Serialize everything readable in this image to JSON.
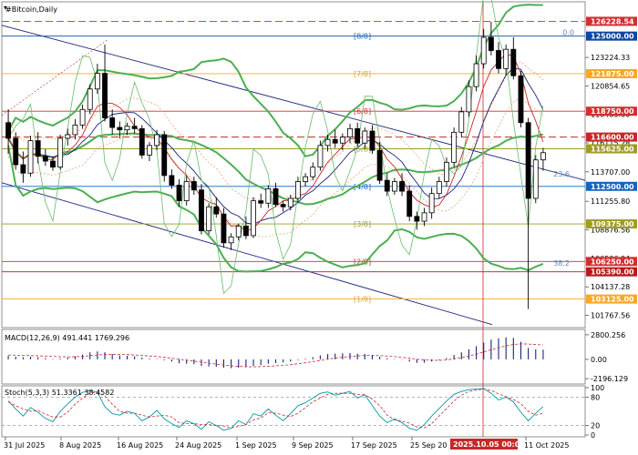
{
  "title": "#Bitcoin,Daily",
  "x_labels": [
    "31 Jul 2025",
    "8 Aug 2025",
    "16 Aug 2025",
    "24 Aug 2025",
    "1 Sep 2025",
    "9 Sep 2025",
    "17 Sep 2025",
    "25 Sep 20",
    "2025.10.05 00:00",
    "11 Oct 2025"
  ],
  "y_labels": [
    "123224.33",
    "120854.65",
    "118485.00",
    "116115.28",
    "113707.00",
    "111255.80",
    "108876.56",
    "106506.94",
    "104137.28",
    "101767.56"
  ],
  "price_tags": [
    {
      "label": "126228.54",
      "color": "#d32f2f",
      "y": 126228.54
    },
    {
      "label": "125000.00",
      "color": "#0d47a1",
      "y": 125000.0
    },
    {
      "label": "121875.00",
      "color": "#f9a825",
      "y": 121875.0
    },
    {
      "label": "118750.00",
      "color": "#d32f2f",
      "y": 118750.0
    },
    {
      "label": "116600.00",
      "color": "#c62828",
      "y": 116600.0
    },
    {
      "label": "115625.00",
      "color": "#9e9d24",
      "y": 115625.0
    },
    {
      "label": "112500.00",
      "color": "#1565c0",
      "y": 112500.0
    },
    {
      "label": "109375.00",
      "color": "#9e9d24",
      "y": 109375.0
    },
    {
      "label": "106250.00",
      "color": "#d32f2f",
      "y": 106250.0
    },
    {
      "label": "105390.00",
      "color": "#b71c1c",
      "y": 105390.0
    },
    {
      "label": "103125.00",
      "color": "#f9a825",
      "y": 103125.0
    }
  ],
  "murrey_labels": [
    {
      "label": "[8/8]",
      "color": "#1565c0",
      "y": 125000
    },
    {
      "label": "[7/8]",
      "color": "#e0a030",
      "y": 121875
    },
    {
      "label": "[6/8]",
      "color": "#d32f2f",
      "y": 118750
    },
    {
      "label": "[5/8]",
      "color": "#9e9d24",
      "y": 115625
    },
    {
      "label": "[4/8]",
      "color": "#1565c0",
      "y": 112500
    },
    {
      "label": "[3/8]",
      "color": "#9e9d24",
      "y": 109375
    },
    {
      "label": "[2/8]",
      "color": "#d32f2f",
      "y": 106250
    },
    {
      "label": "[1/8]",
      "color": "#e0a030",
      "y": 103125
    }
  ],
  "fib_labels": [
    "0.0",
    "23.6",
    "38.2"
  ],
  "macd": {
    "label": "MACD(12,26,9) 491.441 1769.296",
    "ticks": [
      "2800.256",
      "0.00",
      "-2196.129"
    ]
  },
  "stoch": {
    "label": "Stoch(5,3,3) 51.3361 38.4582",
    "ticks": [
      "100",
      "80",
      "20",
      "0"
    ]
  },
  "chart_data": {
    "type": "candlestick",
    "ylim": [
      100900,
      127700
    ],
    "candles": [
      [
        117800,
        118900,
        115200,
        116500
      ],
      [
        116500,
        117000,
        113900,
        114300
      ],
      [
        114300,
        115400,
        112800,
        113600
      ],
      [
        113600,
        116700,
        113300,
        116300
      ],
      [
        116300,
        117000,
        114400,
        115000
      ],
      [
        115000,
        115600,
        114200,
        114600
      ],
      [
        114600,
        115000,
        113800,
        114100
      ],
      [
        114100,
        116800,
        113900,
        116500
      ],
      [
        116500,
        117300,
        115900,
        116800
      ],
      [
        116800,
        118100,
        116400,
        117600
      ],
      [
        117600,
        119300,
        117300,
        118900
      ],
      [
        118900,
        121000,
        118500,
        120600
      ],
      [
        120600,
        122700,
        120200,
        121900
      ],
      [
        121900,
        124300,
        117900,
        118200
      ],
      [
        118200,
        118900,
        116800,
        117400
      ],
      [
        117400,
        117900,
        116500,
        117200
      ],
      [
        117200,
        117800,
        116800,
        117500
      ],
      [
        117500,
        118200,
        116900,
        117300
      ],
      [
        117300,
        117600,
        114800,
        115100
      ],
      [
        115100,
        116200,
        114600,
        115900
      ],
      [
        115900,
        117200,
        115500,
        116800
      ],
      [
        116800,
        117100,
        112900,
        113400
      ],
      [
        113400,
        113900,
        112300,
        112600
      ],
      [
        112600,
        113100,
        110800,
        111300
      ],
      [
        111300,
        113400,
        110900,
        112900
      ],
      [
        112900,
        113300,
        111800,
        112200
      ],
      [
        112200,
        112700,
        108500,
        108800
      ],
      [
        108800,
        111100,
        108500,
        110800
      ],
      [
        110800,
        111600,
        109900,
        110200
      ],
      [
        110200,
        110700,
        107400,
        107800
      ],
      [
        107800,
        108600,
        107200,
        108300
      ],
      [
        108300,
        109400,
        108000,
        109200
      ],
      [
        109200,
        110000,
        108100,
        108400
      ],
      [
        108400,
        111600,
        108200,
        111300
      ],
      [
        111300,
        111900,
        110700,
        111100
      ],
      [
        111100,
        112600,
        110700,
        112300
      ],
      [
        112300,
        112800,
        110800,
        111000
      ],
      [
        111000,
        111300,
        110400,
        110800
      ],
      [
        110800,
        111800,
        110500,
        111500
      ],
      [
        111500,
        113300,
        111200,
        112900
      ],
      [
        112900,
        113600,
        112500,
        113300
      ],
      [
        113300,
        114500,
        113000,
        114100
      ],
      [
        114100,
        116300,
        113800,
        115900
      ],
      [
        115900,
        116800,
        115400,
        116400
      ],
      [
        116400,
        117200,
        115700,
        116100
      ],
      [
        116100,
        116900,
        115500,
        116600
      ],
      [
        116600,
        117700,
        116100,
        117300
      ],
      [
        117300,
        117800,
        115800,
        116100
      ],
      [
        116100,
        117400,
        115600,
        117100
      ],
      [
        117100,
        117600,
        115200,
        115500
      ],
      [
        115500,
        116200,
        112700,
        113000
      ],
      [
        113000,
        113600,
        111700,
        112100
      ],
      [
        112100,
        113200,
        111800,
        112900
      ],
      [
        112900,
        113600,
        111700,
        112100
      ],
      [
        112100,
        112600,
        109600,
        110000
      ],
      [
        110000,
        110400,
        108900,
        109600
      ],
      [
        109600,
        110700,
        109200,
        110300
      ],
      [
        110300,
        112400,
        109800,
        111900
      ],
      [
        111900,
        113300,
        111500,
        112900
      ],
      [
        112900,
        114900,
        112500,
        114500
      ],
      [
        114500,
        117400,
        114100,
        117000
      ],
      [
        117000,
        119100,
        116600,
        118700
      ],
      [
        118700,
        121300,
        118300,
        120800
      ],
      [
        120800,
        123400,
        120400,
        122700
      ],
      [
        122700,
        125600,
        122300,
        124900
      ],
      [
        124900,
        126200,
        123400,
        123800
      ],
      [
        123800,
        124500,
        121900,
        122300
      ],
      [
        122300,
        124300,
        121700,
        123900
      ],
      [
        123900,
        124900,
        121400,
        121700
      ],
      [
        121700,
        122100,
        117400,
        117800
      ],
      [
        117800,
        118200,
        102300,
        111500
      ],
      [
        111500,
        115100,
        111100,
        114700
      ],
      [
        114700,
        115700,
        113800,
        115300
      ]
    ],
    "stoch_k": [
      72,
      55,
      40,
      58,
      48,
      35,
      28,
      50,
      66,
      80,
      90,
      94,
      90,
      60,
      45,
      42,
      50,
      46,
      30,
      38,
      52,
      34,
      24,
      16,
      30,
      24,
      12,
      28,
      20,
      10,
      14,
      30,
      22,
      45,
      40,
      55,
      42,
      30,
      45,
      62,
      68,
      78,
      88,
      91,
      84,
      88,
      92,
      78,
      85,
      62,
      40,
      26,
      34,
      26,
      14,
      10,
      22,
      40,
      56,
      72,
      86,
      92,
      96,
      97,
      98,
      88,
      74,
      80,
      70,
      48,
      30,
      46,
      60
    ],
    "stoch_d": [
      70,
      62,
      55,
      50,
      52,
      44,
      38,
      38,
      48,
      65,
      78,
      88,
      91,
      82,
      65,
      50,
      46,
      46,
      42,
      38,
      40,
      42,
      38,
      26,
      24,
      24,
      22,
      22,
      20,
      19,
      15,
      18,
      22,
      32,
      36,
      47,
      46,
      42,
      39,
      46,
      58,
      70,
      78,
      86,
      88,
      88,
      88,
      86,
      85,
      76,
      62,
      42,
      32,
      29,
      25,
      17,
      15,
      24,
      40,
      56,
      72,
      84,
      92,
      95,
      97,
      94,
      87,
      81,
      75,
      66,
      50,
      42,
      46
    ],
    "macd_hist": [
      400,
      300,
      250,
      300,
      250,
      150,
      50,
      100,
      200,
      350,
      550,
      800,
      900,
      800,
      600,
      450,
      400,
      350,
      200,
      100,
      50,
      -100,
      -250,
      -450,
      -500,
      -550,
      -750,
      -800,
      -850,
      -950,
      -1000,
      -950,
      -900,
      -750,
      -650,
      -500,
      -420,
      -350,
      -250,
      -80,
      80,
      250,
      450,
      600,
      650,
      680,
      720,
      650,
      620,
      500,
      300,
      120,
      50,
      -50,
      -250,
      -400,
      -380,
      -250,
      -100,
      150,
      500,
      800,
      1150,
      1500,
      1900,
      2250,
      2400,
      2500,
      2450,
      2000,
      1300,
      1150,
      1100
    ],
    "macd_signal": [
      500,
      480,
      450,
      420,
      400,
      370,
      330,
      300,
      290,
      300,
      340,
      420,
      500,
      560,
      580,
      570,
      540,
      500,
      450,
      380,
      320,
      230,
      130,
      10,
      -100,
      -200,
      -320,
      -440,
      -540,
      -640,
      -740,
      -800,
      -840,
      -850,
      -830,
      -790,
      -740,
      -680,
      -600,
      -500,
      -380,
      -260,
      -120,
      20,
      140,
      240,
      330,
      390,
      430,
      440,
      420,
      370,
      310,
      230,
      130,
      20,
      -60,
      -100,
      -110,
      -60,
      50,
      200,
      380,
      600,
      840,
      1100,
      1330,
      1530,
      1700,
      1770,
      1740,
      1690,
      1650
    ]
  }
}
